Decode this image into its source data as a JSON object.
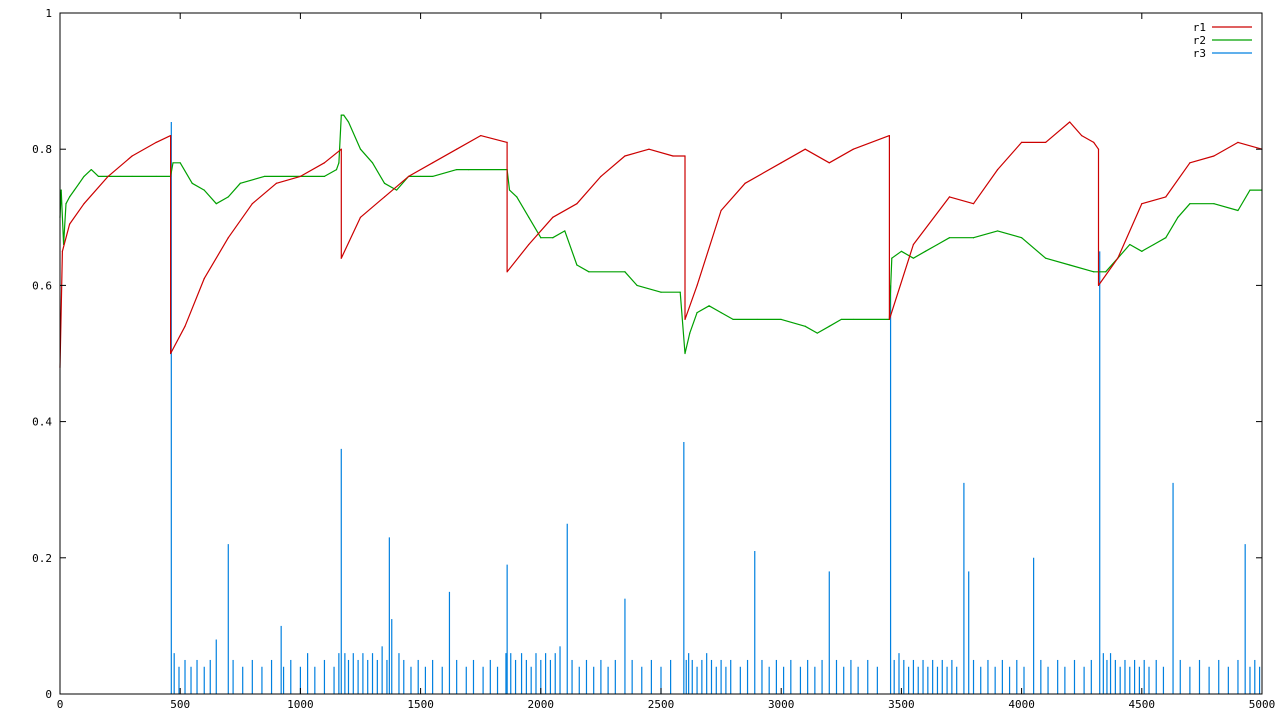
{
  "chart_data": {
    "type": "line",
    "title": "",
    "xlabel": "",
    "ylabel": "",
    "xlim": [
      0,
      5000
    ],
    "ylim": [
      0,
      1
    ],
    "x_ticks": [
      0,
      500,
      1000,
      1500,
      2000,
      2500,
      3000,
      3500,
      4000,
      4500,
      5000
    ],
    "x_tick_labels": [
      "0",
      "500",
      "1000",
      "1500",
      "2000",
      "2500",
      "3000",
      "3500",
      "4000",
      "4500",
      "5000"
    ],
    "y_ticks": [
      0,
      0.2,
      0.4,
      0.6,
      0.8,
      1
    ],
    "y_tick_labels": [
      "0",
      "0.2",
      "0.4",
      "0.6",
      "0.8",
      "1"
    ],
    "grid": false,
    "legend_position": "top-right",
    "series": [
      {
        "name": "r1",
        "color": "#cc0000",
        "x": [
          0,
          10,
          40,
          100,
          200,
          300,
          400,
          460,
          460,
          520,
          600,
          700,
          800,
          900,
          1000,
          1100,
          1170,
          1170,
          1250,
          1350,
          1450,
          1550,
          1650,
          1750,
          1860,
          1860,
          1950,
          2050,
          2150,
          2250,
          2350,
          2450,
          2550,
          2600,
          2600,
          2650,
          2750,
          2850,
          3000,
          3100,
          3200,
          3300,
          3450,
          3450,
          3550,
          3700,
          3800,
          3900,
          4000,
          4100,
          4200,
          4250,
          4300,
          4320,
          4320,
          4400,
          4500,
          4600,
          4700,
          4800,
          4900,
          5000
        ],
        "y": [
          0.48,
          0.65,
          0.69,
          0.72,
          0.76,
          0.79,
          0.81,
          0.82,
          0.5,
          0.54,
          0.61,
          0.67,
          0.72,
          0.75,
          0.76,
          0.78,
          0.8,
          0.64,
          0.7,
          0.73,
          0.76,
          0.78,
          0.8,
          0.82,
          0.81,
          0.62,
          0.66,
          0.7,
          0.72,
          0.76,
          0.79,
          0.8,
          0.79,
          0.79,
          0.55,
          0.6,
          0.71,
          0.75,
          0.78,
          0.8,
          0.78,
          0.8,
          0.82,
          0.55,
          0.66,
          0.73,
          0.72,
          0.77,
          0.81,
          0.81,
          0.84,
          0.82,
          0.81,
          0.8,
          0.6,
          0.64,
          0.72,
          0.73,
          0.78,
          0.79,
          0.81,
          0.8
        ]
      },
      {
        "name": "r2",
        "color": "#00a000",
        "x": [
          0,
          5,
          15,
          25,
          40,
          60,
          80,
          100,
          130,
          160,
          200,
          250,
          300,
          400,
          460,
          470,
          500,
          550,
          600,
          650,
          700,
          750,
          850,
          1000,
          1100,
          1150,
          1160,
          1170,
          1180,
          1200,
          1250,
          1300,
          1350,
          1400,
          1450,
          1500,
          1550,
          1650,
          1700,
          1860,
          1870,
          1900,
          1950,
          2000,
          2050,
          2100,
          2150,
          2200,
          2350,
          2400,
          2500,
          2580,
          2600,
          2620,
          2650,
          2700,
          2750,
          2800,
          2900,
          3000,
          3100,
          3150,
          3200,
          3250,
          3300,
          3450,
          3460,
          3500,
          3550,
          3600,
          3650,
          3700,
          3800,
          3900,
          4000,
          4100,
          4200,
          4300,
          4320,
          4350,
          4400,
          4450,
          4500,
          4550,
          4600,
          4650,
          4700,
          4800,
          4900,
          4950,
          5000
        ],
        "y": [
          0.7,
          0.74,
          0.66,
          0.72,
          0.73,
          0.74,
          0.75,
          0.76,
          0.77,
          0.76,
          0.76,
          0.76,
          0.76,
          0.76,
          0.76,
          0.78,
          0.78,
          0.75,
          0.74,
          0.72,
          0.73,
          0.75,
          0.76,
          0.76,
          0.76,
          0.77,
          0.78,
          0.85,
          0.85,
          0.84,
          0.8,
          0.78,
          0.75,
          0.74,
          0.76,
          0.76,
          0.76,
          0.77,
          0.77,
          0.77,
          0.74,
          0.73,
          0.7,
          0.67,
          0.67,
          0.68,
          0.63,
          0.62,
          0.62,
          0.6,
          0.59,
          0.59,
          0.5,
          0.53,
          0.56,
          0.57,
          0.56,
          0.55,
          0.55,
          0.55,
          0.54,
          0.53,
          0.54,
          0.55,
          0.55,
          0.55,
          0.64,
          0.65,
          0.64,
          0.65,
          0.66,
          0.67,
          0.67,
          0.68,
          0.67,
          0.64,
          0.63,
          0.62,
          0.62,
          0.62,
          0.64,
          0.66,
          0.65,
          0.66,
          0.67,
          0.7,
          0.72,
          0.72,
          0.71,
          0.74,
          0.74
        ]
      },
      {
        "name": "r3",
        "color": "#0080e0",
        "style": "impulses",
        "x": [
          463,
          475,
          495,
          520,
          545,
          570,
          600,
          625,
          650,
          700,
          720,
          760,
          800,
          840,
          880,
          920,
          930,
          960,
          1000,
          1030,
          1060,
          1100,
          1140,
          1160,
          1170,
          1185,
          1200,
          1220,
          1240,
          1260,
          1280,
          1300,
          1320,
          1340,
          1360,
          1370,
          1380,
          1410,
          1430,
          1460,
          1490,
          1520,
          1550,
          1590,
          1620,
          1650,
          1690,
          1720,
          1760,
          1790,
          1820,
          1855,
          1860,
          1875,
          1895,
          1920,
          1940,
          1960,
          1980,
          2000,
          2020,
          2040,
          2060,
          2080,
          2110,
          2130,
          2160,
          2190,
          2220,
          2250,
          2280,
          2310,
          2350,
          2380,
          2420,
          2460,
          2500,
          2540,
          2595,
          2605,
          2615,
          2630,
          2650,
          2670,
          2690,
          2710,
          2730,
          2750,
          2770,
          2790,
          2830,
          2860,
          2890,
          2920,
          2950,
          2980,
          3010,
          3040,
          3080,
          3110,
          3140,
          3170,
          3200,
          3230,
          3260,
          3290,
          3320,
          3360,
          3400,
          3455,
          3470,
          3490,
          3510,
          3530,
          3550,
          3570,
          3590,
          3610,
          3630,
          3650,
          3670,
          3690,
          3710,
          3730,
          3760,
          3780,
          3800,
          3830,
          3860,
          3890,
          3920,
          3950,
          3980,
          4010,
          4050,
          4080,
          4110,
          4150,
          4180,
          4220,
          4260,
          4290,
          4325,
          4340,
          4355,
          4370,
          4390,
          4410,
          4430,
          4450,
          4470,
          4490,
          4510,
          4530,
          4560,
          4590,
          4630,
          4660,
          4700,
          4740,
          4780,
          4820,
          4860,
          4900,
          4930,
          4950,
          4970,
          4990
        ],
        "y": [
          0.84,
          0.06,
          0.04,
          0.05,
          0.04,
          0.05,
          0.04,
          0.05,
          0.08,
          0.22,
          0.05,
          0.04,
          0.05,
          0.04,
          0.05,
          0.1,
          0.04,
          0.05,
          0.04,
          0.06,
          0.04,
          0.05,
          0.04,
          0.06,
          0.36,
          0.06,
          0.05,
          0.06,
          0.05,
          0.06,
          0.05,
          0.06,
          0.05,
          0.07,
          0.05,
          0.23,
          0.11,
          0.06,
          0.05,
          0.04,
          0.05,
          0.04,
          0.05,
          0.04,
          0.15,
          0.05,
          0.04,
          0.05,
          0.04,
          0.05,
          0.04,
          0.06,
          0.19,
          0.06,
          0.05,
          0.06,
          0.05,
          0.04,
          0.06,
          0.05,
          0.06,
          0.05,
          0.06,
          0.07,
          0.25,
          0.05,
          0.04,
          0.05,
          0.04,
          0.05,
          0.04,
          0.05,
          0.14,
          0.05,
          0.04,
          0.05,
          0.04,
          0.05,
          0.37,
          0.05,
          0.06,
          0.05,
          0.04,
          0.05,
          0.06,
          0.05,
          0.04,
          0.05,
          0.04,
          0.05,
          0.04,
          0.05,
          0.21,
          0.05,
          0.04,
          0.05,
          0.04,
          0.05,
          0.04,
          0.05,
          0.04,
          0.05,
          0.18,
          0.05,
          0.04,
          0.05,
          0.04,
          0.05,
          0.04,
          0.6,
          0.05,
          0.06,
          0.05,
          0.04,
          0.05,
          0.04,
          0.05,
          0.04,
          0.05,
          0.04,
          0.05,
          0.04,
          0.05,
          0.04,
          0.31,
          0.18,
          0.05,
          0.04,
          0.05,
          0.04,
          0.05,
          0.04,
          0.05,
          0.04,
          0.2,
          0.05,
          0.04,
          0.05,
          0.04,
          0.05,
          0.04,
          0.05,
          0.65,
          0.06,
          0.05,
          0.06,
          0.05,
          0.04,
          0.05,
          0.04,
          0.05,
          0.04,
          0.05,
          0.04,
          0.05,
          0.04,
          0.31,
          0.05,
          0.04,
          0.05,
          0.04,
          0.05,
          0.04,
          0.05,
          0.22,
          0.04,
          0.05,
          0.04
        ]
      }
    ]
  }
}
